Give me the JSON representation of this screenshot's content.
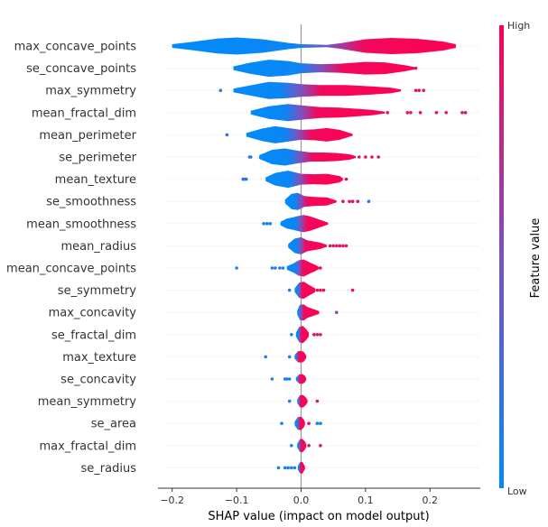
{
  "chart_data": {
    "type": "violin",
    "xlabel": "SHAP value (impact on model output)",
    "x_ticks": [
      -0.2,
      -0.1,
      0.0,
      0.1,
      0.2
    ],
    "x_tick_labels": [
      "−0.2",
      "−0.1",
      "0.0",
      "0.1",
      "0.2"
    ],
    "xlim": [
      -0.222,
      0.278
    ],
    "colorbar": {
      "title": "Feature value",
      "high_label": "High",
      "low_label": "Low",
      "high_color": "#ff0052",
      "low_color": "#008bfa"
    },
    "features": [
      {
        "name": "max_concave_points",
        "min": -0.2,
        "max": 0.24,
        "color_split": 0.045,
        "profile": [
          [
            -0.2,
            0.2
          ],
          [
            -0.17,
            0.45
          ],
          [
            -0.13,
            0.82
          ],
          [
            -0.1,
            0.95
          ],
          [
            -0.06,
            0.75
          ],
          [
            -0.02,
            0.35
          ],
          [
            0.0,
            0.2
          ],
          [
            0.03,
            0.15
          ],
          [
            0.04,
            0.12
          ],
          [
            0.06,
            0.3
          ],
          [
            0.1,
            0.75
          ],
          [
            0.14,
            0.9
          ],
          [
            0.18,
            0.8
          ],
          [
            0.22,
            0.5
          ],
          [
            0.24,
            0.2
          ]
        ],
        "outliers": []
      },
      {
        "name": "se_concave_points",
        "min": -0.105,
        "max": 0.178,
        "color_split": 0.03,
        "profile": [
          [
            -0.105,
            0.2
          ],
          [
            -0.08,
            0.6
          ],
          [
            -0.05,
            0.95
          ],
          [
            -0.02,
            0.8
          ],
          [
            0.0,
            0.55
          ],
          [
            0.03,
            0.45
          ],
          [
            0.06,
            0.5
          ],
          [
            0.1,
            0.7
          ],
          [
            0.13,
            0.65
          ],
          [
            0.16,
            0.35
          ],
          [
            0.178,
            0.1
          ]
        ],
        "outliers": [
          {
            "x": 0.178,
            "v": 0.9
          }
        ]
      },
      {
        "name": "max_symmetry",
        "min": -0.105,
        "max": 0.155,
        "color_split": 0.0,
        "profile": [
          [
            -0.105,
            0.2
          ],
          [
            -0.08,
            0.55
          ],
          [
            -0.05,
            0.95
          ],
          [
            -0.02,
            0.85
          ],
          [
            0.0,
            0.7
          ],
          [
            0.03,
            0.6
          ],
          [
            0.07,
            0.6
          ],
          [
            0.11,
            0.45
          ],
          [
            0.14,
            0.3
          ],
          [
            0.155,
            0.1
          ]
        ],
        "outliers": [
          {
            "x": -0.125,
            "v": 0.2
          },
          {
            "x": 0.178,
            "v": 0.9
          },
          {
            "x": 0.183,
            "v": 0.9
          },
          {
            "x": 0.19,
            "v": 0.9
          }
        ]
      },
      {
        "name": "mean_fractal_dim",
        "min": -0.078,
        "max": 0.13,
        "color_split": 0.0,
        "profile": [
          [
            -0.078,
            0.2
          ],
          [
            -0.05,
            0.7
          ],
          [
            -0.02,
            0.95
          ],
          [
            0.0,
            0.8
          ],
          [
            0.03,
            0.6
          ],
          [
            0.06,
            0.55
          ],
          [
            0.09,
            0.4
          ],
          [
            0.11,
            0.3
          ],
          [
            0.13,
            0.1
          ]
        ],
        "outliers": [
          {
            "x": 0.134,
            "v": 0.9
          },
          {
            "x": 0.165,
            "v": 0.9
          },
          {
            "x": 0.17,
            "v": 0.9
          },
          {
            "x": 0.185,
            "v": 0.9
          },
          {
            "x": 0.21,
            "v": 0.9
          },
          {
            "x": 0.225,
            "v": 0.9
          },
          {
            "x": 0.25,
            "v": 0.9
          },
          {
            "x": 0.255,
            "v": 0.9
          }
        ]
      },
      {
        "name": "mean_perimeter",
        "min": -0.085,
        "max": 0.08,
        "color_split": -0.005,
        "profile": [
          [
            -0.085,
            0.2
          ],
          [
            -0.06,
            0.7
          ],
          [
            -0.04,
            0.95
          ],
          [
            -0.02,
            0.75
          ],
          [
            0.0,
            0.55
          ],
          [
            0.02,
            0.6
          ],
          [
            0.04,
            0.75
          ],
          [
            0.06,
            0.55
          ],
          [
            0.08,
            0.1
          ]
        ],
        "outliers": [
          {
            "x": -0.115,
            "v": 0.2
          }
        ]
      },
      {
        "name": "se_perimeter",
        "min": -0.065,
        "max": 0.085,
        "color_split": 0.0,
        "profile": [
          [
            -0.065,
            0.2
          ],
          [
            -0.045,
            0.8
          ],
          [
            -0.025,
            0.95
          ],
          [
            -0.005,
            0.7
          ],
          [
            0.015,
            0.5
          ],
          [
            0.035,
            0.5
          ],
          [
            0.055,
            0.45
          ],
          [
            0.075,
            0.3
          ],
          [
            0.085,
            0.1
          ]
        ],
        "outliers": [
          {
            "x": -0.08,
            "v": 0.2
          },
          {
            "x": -0.078,
            "v": 0.2
          },
          {
            "x": 0.09,
            "v": 0.85
          },
          {
            "x": 0.1,
            "v": 0.9
          },
          {
            "x": 0.11,
            "v": 0.9
          },
          {
            "x": 0.12,
            "v": 0.9
          }
        ]
      },
      {
        "name": "mean_texture",
        "min": -0.055,
        "max": 0.065,
        "color_split": -0.002,
        "profile": [
          [
            -0.055,
            0.2
          ],
          [
            -0.04,
            0.7
          ],
          [
            -0.02,
            0.95
          ],
          [
            0.0,
            0.6
          ],
          [
            0.02,
            0.55
          ],
          [
            0.04,
            0.6
          ],
          [
            0.06,
            0.35
          ],
          [
            0.065,
            0.1
          ]
        ],
        "outliers": [
          {
            "x": -0.09,
            "v": 0.2
          },
          {
            "x": -0.088,
            "v": 0.2
          },
          {
            "x": -0.085,
            "v": 0.2
          },
          {
            "x": 0.07,
            "v": 0.9
          }
        ]
      },
      {
        "name": "se_smoothness",
        "min": -0.025,
        "max": 0.055,
        "color_split": 0.0,
        "profile": [
          [
            -0.025,
            0.2
          ],
          [
            -0.015,
            0.85
          ],
          [
            -0.005,
            0.95
          ],
          [
            0.005,
            0.6
          ],
          [
            0.02,
            0.5
          ],
          [
            0.04,
            0.45
          ],
          [
            0.055,
            0.1
          ]
        ],
        "outliers": [
          {
            "x": 0.065,
            "v": 0.85
          },
          {
            "x": 0.075,
            "v": 0.9
          },
          {
            "x": 0.08,
            "v": 0.9
          },
          {
            "x": 0.088,
            "v": 0.9
          },
          {
            "x": 0.105,
            "v": 0.1
          }
        ]
      },
      {
        "name": "mean_smoothness",
        "min": -0.032,
        "max": 0.042,
        "color_split": 0.0,
        "profile": [
          [
            -0.032,
            0.2
          ],
          [
            -0.022,
            0.55
          ],
          [
            -0.012,
            0.7
          ],
          [
            -0.004,
            0.85
          ],
          [
            0.004,
            0.95
          ],
          [
            0.014,
            0.8
          ],
          [
            0.026,
            0.5
          ],
          [
            0.042,
            0.1
          ]
        ],
        "outliers": [
          {
            "x": -0.058,
            "v": 0.1
          },
          {
            "x": -0.053,
            "v": 0.1
          },
          {
            "x": -0.048,
            "v": 0.1
          }
        ]
      },
      {
        "name": "mean_radius",
        "min": -0.02,
        "max": 0.04,
        "color_split": 0.0,
        "profile": [
          [
            -0.02,
            0.2
          ],
          [
            -0.01,
            0.8
          ],
          [
            0.0,
            0.95
          ],
          [
            0.01,
            0.6
          ],
          [
            0.022,
            0.45
          ],
          [
            0.03,
            0.35
          ],
          [
            0.04,
            0.1
          ]
        ],
        "outliers": [
          {
            "x": 0.045,
            "v": 0.85
          },
          {
            "x": 0.05,
            "v": 0.9
          },
          {
            "x": 0.055,
            "v": 0.9
          },
          {
            "x": 0.06,
            "v": 0.9
          },
          {
            "x": 0.065,
            "v": 0.9
          },
          {
            "x": 0.07,
            "v": 0.9
          }
        ]
      },
      {
        "name": "mean_concave_points",
        "min": -0.022,
        "max": 0.028,
        "color_split": -0.003,
        "profile": [
          [
            -0.022,
            0.2
          ],
          [
            -0.012,
            0.5
          ],
          [
            -0.004,
            0.85
          ],
          [
            0.004,
            0.95
          ],
          [
            0.014,
            0.6
          ],
          [
            0.022,
            0.35
          ],
          [
            0.028,
            0.1
          ]
        ],
        "outliers": [
          {
            "x": -0.1,
            "v": 0.1
          },
          {
            "x": -0.045,
            "v": 0.1
          },
          {
            "x": -0.04,
            "v": 0.1
          },
          {
            "x": -0.033,
            "v": 0.1
          },
          {
            "x": -0.028,
            "v": 0.1
          },
          {
            "x": 0.03,
            "v": 0.9
          }
        ]
      },
      {
        "name": "se_symmetry",
        "min": -0.01,
        "max": 0.022,
        "color_split": -0.002,
        "profile": [
          [
            -0.01,
            0.2
          ],
          [
            -0.003,
            0.85
          ],
          [
            0.004,
            0.95
          ],
          [
            0.012,
            0.6
          ],
          [
            0.022,
            0.2
          ]
        ],
        "outliers": [
          {
            "x": -0.018,
            "v": 0.1
          },
          {
            "x": 0.025,
            "v": 0.9
          },
          {
            "x": 0.03,
            "v": 0.9
          },
          {
            "x": 0.035,
            "v": 0.9
          },
          {
            "x": 0.08,
            "v": 0.9
          }
        ]
      },
      {
        "name": "max_concavity",
        "min": -0.006,
        "max": 0.028,
        "color_split": 0.0,
        "profile": [
          [
            -0.006,
            0.2
          ],
          [
            -0.002,
            0.85
          ],
          [
            0.004,
            0.9
          ],
          [
            0.01,
            0.6
          ],
          [
            0.018,
            0.4
          ],
          [
            0.028,
            0.15
          ]
        ],
        "outliers": [
          {
            "x": 0.055,
            "v": 0.6
          }
        ]
      },
      {
        "name": "se_fractal_dim",
        "min": -0.008,
        "max": 0.012,
        "color_split": -0.002,
        "profile": [
          [
            -0.008,
            0.2
          ],
          [
            -0.003,
            0.85
          ],
          [
            0.003,
            0.95
          ],
          [
            0.008,
            0.6
          ],
          [
            0.012,
            0.2
          ]
        ],
        "outliers": [
          {
            "x": -0.015,
            "v": 0.1
          },
          {
            "x": 0.02,
            "v": 0.9
          },
          {
            "x": 0.025,
            "v": 0.9
          },
          {
            "x": 0.03,
            "v": 0.9
          }
        ]
      },
      {
        "name": "max_texture",
        "min": -0.01,
        "max": 0.008,
        "color_split": -0.006,
        "profile": [
          [
            -0.01,
            0.2
          ],
          [
            -0.005,
            0.6
          ],
          [
            0.0,
            0.65
          ],
          [
            0.004,
            0.55
          ],
          [
            0.008,
            0.15
          ]
        ],
        "outliers": [
          {
            "x": -0.055,
            "v": 0.1
          },
          {
            "x": -0.018,
            "v": 0.1
          }
        ]
      },
      {
        "name": "se_concavity",
        "min": -0.008,
        "max": 0.008,
        "color_split": -0.004,
        "profile": [
          [
            -0.008,
            0.15
          ],
          [
            -0.003,
            0.5
          ],
          [
            0.002,
            0.55
          ],
          [
            0.006,
            0.35
          ],
          [
            0.008,
            0.1
          ]
        ],
        "outliers": [
          {
            "x": -0.045,
            "v": 0.1
          },
          {
            "x": -0.025,
            "v": 0.1
          },
          {
            "x": -0.022,
            "v": 0.1
          },
          {
            "x": -0.018,
            "v": 0.1
          }
        ]
      },
      {
        "name": "mean_symmetry",
        "min": -0.006,
        "max": 0.01,
        "color_split": -0.003,
        "profile": [
          [
            -0.006,
            0.2
          ],
          [
            -0.002,
            0.65
          ],
          [
            0.003,
            0.7
          ],
          [
            0.007,
            0.45
          ],
          [
            0.01,
            0.15
          ]
        ],
        "outliers": [
          {
            "x": -0.018,
            "v": 0.1
          },
          {
            "x": 0.025,
            "v": 0.8
          }
        ]
      },
      {
        "name": "se_area",
        "min": -0.01,
        "max": 0.006,
        "color_split": -0.004,
        "profile": [
          [
            -0.01,
            0.2
          ],
          [
            -0.005,
            0.7
          ],
          [
            0.0,
            0.75
          ],
          [
            0.004,
            0.45
          ],
          [
            0.006,
            0.15
          ]
        ],
        "outliers": [
          {
            "x": -0.03,
            "v": 0.1
          },
          {
            "x": 0.012,
            "v": 0.9
          },
          {
            "x": 0.025,
            "v": 0.1
          },
          {
            "x": 0.03,
            "v": 0.1
          }
        ]
      },
      {
        "name": "max_fractal_dim",
        "min": -0.006,
        "max": 0.008,
        "color_split": -0.002,
        "profile": [
          [
            -0.006,
            0.2
          ],
          [
            -0.002,
            0.7
          ],
          [
            0.002,
            0.75
          ],
          [
            0.006,
            0.45
          ],
          [
            0.008,
            0.15
          ]
        ],
        "outliers": [
          {
            "x": -0.015,
            "v": 0.1
          },
          {
            "x": 0.012,
            "v": 0.9
          },
          {
            "x": 0.03,
            "v": 0.9
          }
        ]
      },
      {
        "name": "se_radius",
        "min": -0.005,
        "max": 0.006,
        "color_split": -0.002,
        "profile": [
          [
            -0.005,
            0.2
          ],
          [
            -0.002,
            0.6
          ],
          [
            0.002,
            0.65
          ],
          [
            0.004,
            0.4
          ],
          [
            0.006,
            0.15
          ]
        ],
        "outliers": [
          {
            "x": -0.035,
            "v": 0.1
          },
          {
            "x": -0.025,
            "v": 0.1
          },
          {
            "x": -0.02,
            "v": 0.1
          },
          {
            "x": -0.015,
            "v": 0.1
          },
          {
            "x": -0.01,
            "v": 0.1
          }
        ]
      }
    ]
  }
}
